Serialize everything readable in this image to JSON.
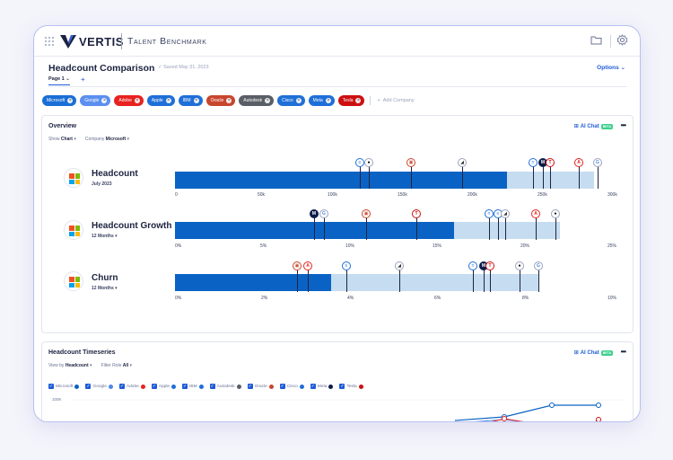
{
  "app": {
    "brand": "VERTIS",
    "product": "Talent Benchmark"
  },
  "page": {
    "title": "Headcount Comparison",
    "saved": "Saved May 31, 2023",
    "options": "Options",
    "tab": "Page 1",
    "add_tab": "+"
  },
  "companies": [
    {
      "name": "Microsoft",
      "color": "#1a6fd6"
    },
    {
      "name": "Google",
      "color": "#5b8ff0"
    },
    {
      "name": "Adobe",
      "color": "#e8221f"
    },
    {
      "name": "Apple",
      "color": "#1f6fd8"
    },
    {
      "name": "IBM",
      "color": "#1f6fd8"
    },
    {
      "name": "Oracle",
      "color": "#c8462e"
    },
    {
      "name": "Autodesk",
      "color": "#5a5e66"
    },
    {
      "name": "Cisco",
      "color": "#1f6fd8"
    },
    {
      "name": "Meta",
      "color": "#1f6fd8"
    },
    {
      "name": "Tesla",
      "color": "#cc1010"
    }
  ],
  "add_company": "Add Company",
  "overview": {
    "title": "Overview",
    "ai_chat": "AI Chat",
    "beta": "BETA",
    "more": "•••",
    "show_label": "Show",
    "show_value": "Chart",
    "company_label": "Company",
    "company_value": "Microsoft",
    "metrics": [
      {
        "name": "Headcount",
        "sub": "July 2023",
        "ticks": [
          "0",
          "50k",
          "100k",
          "150k",
          "200k",
          "250k",
          "300k"
        ],
        "fill_fraction": 0.757,
        "bg_fraction": 0.955
      },
      {
        "name": "Headcount Growth",
        "sub": "12 Months",
        "ticks": [
          "0%",
          "5%",
          "10%",
          "15%",
          "20%",
          "25%"
        ],
        "fill_fraction": 0.637,
        "bg_fraction": 0.878
      },
      {
        "name": "Churn",
        "sub": "12 Months",
        "ticks": [
          "0%",
          "2%",
          "4%",
          "6%",
          "8%",
          "10%"
        ],
        "fill_fraction": 0.358,
        "bg_fraction": 0.834
      }
    ]
  },
  "timeseries": {
    "title": "Headcount Timeseries",
    "ai_chat": "AI Chat",
    "beta": "BETA",
    "more": "•••",
    "view_label": "View by",
    "view_value": "Headcount",
    "filter_label": "Filter Role",
    "filter_value": "All",
    "y_tick": "100K",
    "legend": [
      {
        "name": "Microsoft",
        "color": "#0a63c4"
      },
      {
        "name": "Google",
        "color": "#4f86e8"
      },
      {
        "name": "Adobe",
        "color": "#e8221f"
      },
      {
        "name": "Apple",
        "color": "#1f6fd8"
      },
      {
        "name": "IBM",
        "color": "#1f6fd8"
      },
      {
        "name": "Autodesk",
        "color": "#5a5e66"
      },
      {
        "name": "Oracle",
        "color": "#c8462e"
      },
      {
        "name": "Cisco",
        "color": "#1f6fd8"
      },
      {
        "name": "Meta",
        "color": "#0d1b4a"
      },
      {
        "name": "Tesla",
        "color": "#cc1010"
      }
    ]
  }
}
